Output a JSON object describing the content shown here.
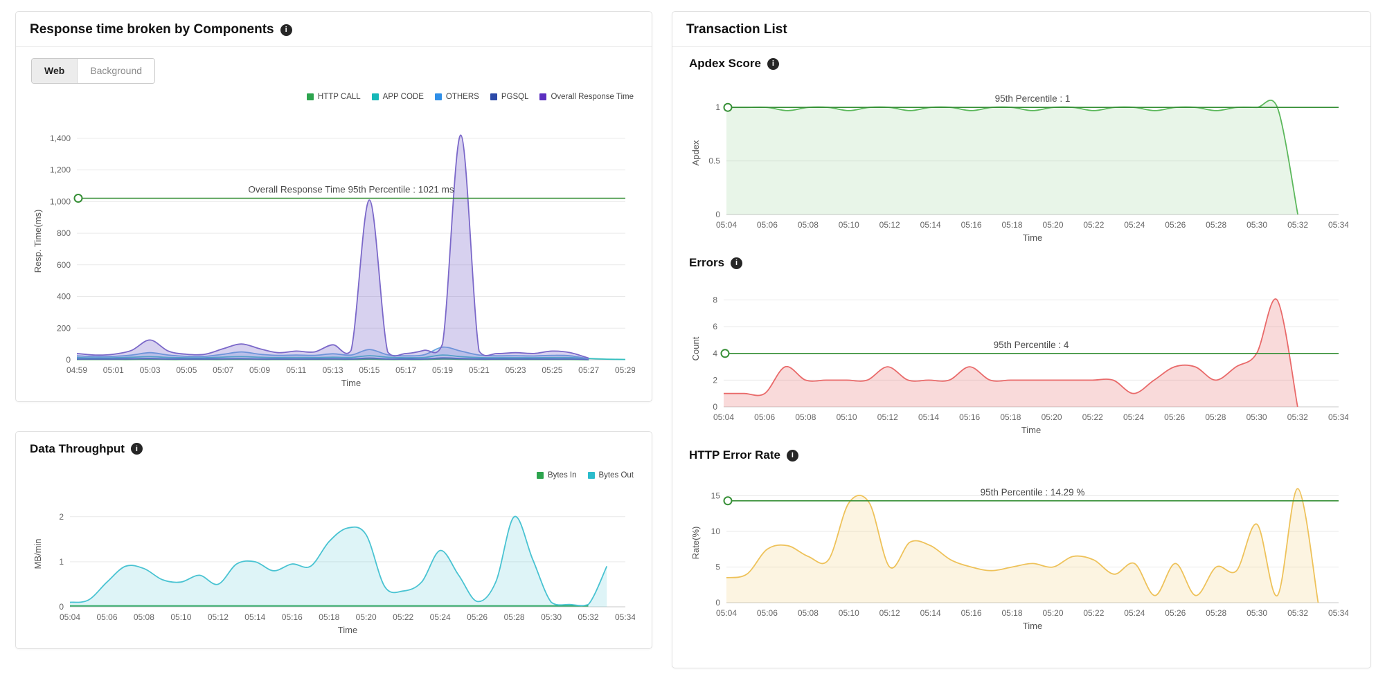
{
  "left": {
    "response_card": {
      "title": "Response time broken by Components",
      "tabs": [
        {
          "label": "Web",
          "active": true
        },
        {
          "label": "Background",
          "active": false
        }
      ],
      "legend": [
        {
          "label": "HTTP CALL",
          "color": "#2da44e"
        },
        {
          "label": "APP CODE",
          "color": "#17b8b8"
        },
        {
          "label": "OTHERS",
          "color": "#2f8fe8"
        },
        {
          "label": "PGSQL",
          "color": "#2c4aa8"
        },
        {
          "label": "Overall Response Time",
          "color": "#5b2fc0"
        }
      ]
    },
    "throughput_card": {
      "title": "Data Throughput",
      "legend": [
        {
          "label": "Bytes In",
          "color": "#2da44e"
        },
        {
          "label": "Bytes Out",
          "color": "#2bbccc"
        }
      ]
    }
  },
  "right": {
    "title": "Transaction List",
    "sections": [
      {
        "title": "Apdex Score"
      },
      {
        "title": "Errors"
      },
      {
        "title": "HTTP Error Rate"
      }
    ]
  },
  "chart_data": [
    {
      "id": "response_components",
      "type": "area",
      "title": "Response time broken by Components (Web)",
      "xlabel": "Time",
      "ylabel": "Resp. Time(ms)",
      "ml": 66,
      "x_count": 31,
      "x_ticks": [
        "04:59",
        "05:01",
        "05:03",
        "05:05",
        "05:07",
        "05:09",
        "05:11",
        "05:13",
        "05:15",
        "05:17",
        "05:19",
        "05:21",
        "05:23",
        "05:25",
        "05:27",
        "05:29"
      ],
      "ylim": [
        0,
        1500
      ],
      "y_ticks": [
        0,
        200,
        400,
        600,
        800,
        1000,
        1200,
        1400
      ],
      "y_tick_labels": [
        "0",
        "200",
        "400",
        "600",
        "800",
        "1,000",
        "1,200",
        "1,400"
      ],
      "threshold": {
        "value": 1021,
        "label": "Overall Response Time 95th Percentile : 1021 ms",
        "color": "#368f36"
      },
      "series": [
        {
          "name": "HTTP CALL",
          "color": "#2da44e",
          "values": [
            2,
            2,
            2,
            2,
            3,
            2,
            2,
            2,
            2,
            3,
            2,
            2,
            2,
            2,
            2,
            2,
            4,
            2,
            2,
            2,
            5,
            3,
            2,
            2,
            2,
            2,
            2,
            2,
            1,
            null,
            null
          ]
        },
        {
          "name": "APP CODE",
          "color": "#35c0c0",
          "values": [
            14,
            12,
            13,
            16,
            20,
            15,
            13,
            13,
            17,
            20,
            16,
            14,
            15,
            14,
            16,
            15,
            26,
            16,
            13,
            15,
            30,
            20,
            14,
            13,
            13,
            13,
            14,
            14,
            8,
            4,
            2
          ]
        },
        {
          "name": "PGSQL",
          "color": "#3a57b5",
          "values": [
            5,
            5,
            5,
            6,
            8,
            5,
            5,
            5,
            6,
            7,
            5,
            5,
            5,
            5,
            6,
            5,
            11,
            5,
            5,
            5,
            12,
            8,
            5,
            5,
            5,
            5,
            5,
            5,
            2,
            null,
            null
          ]
        },
        {
          "name": "OTHERS",
          "color": "#6aa7e0",
          "fill": "rgba(106,167,224,0.28)",
          "values": [
            25,
            20,
            22,
            30,
            45,
            30,
            22,
            22,
            35,
            50,
            35,
            28,
            30,
            28,
            38,
            30,
            65,
            32,
            25,
            32,
            80,
            55,
            30,
            25,
            26,
            24,
            28,
            25,
            6,
            null,
            null
          ]
        },
        {
          "name": "Overall Response Time",
          "color": "#7b68c9",
          "fill": "rgba(123,104,201,0.30)",
          "values": [
            40,
            30,
            35,
            60,
            125,
            55,
            35,
            35,
            70,
            100,
            70,
            45,
            55,
            50,
            95,
            60,
            1010,
            50,
            40,
            60,
            100,
            1420,
            55,
            40,
            45,
            40,
            55,
            45,
            10,
            null,
            null
          ]
        }
      ]
    },
    {
      "id": "data_throughput",
      "type": "area",
      "title": "Data Throughput",
      "xlabel": "Time",
      "ylabel": "MB/min",
      "ml": 56,
      "x_count": 31,
      "x_ticks": [
        "05:04",
        "05:06",
        "05:08",
        "05:10",
        "05:12",
        "05:14",
        "05:16",
        "05:18",
        "05:20",
        "05:22",
        "05:24",
        "05:26",
        "05:28",
        "05:30",
        "05:32",
        "05:34"
      ],
      "ylim": [
        0,
        2.35
      ],
      "y_ticks": [
        0,
        1,
        2
      ],
      "y_tick_labels": [
        "0",
        "1",
        "2"
      ],
      "series": [
        {
          "name": "Bytes In",
          "color": "#2da44e",
          "values": [
            0.02,
            0.02,
            0.02,
            0.02,
            0.02,
            0.02,
            0.02,
            0.02,
            0.02,
            0.02,
            0.02,
            0.02,
            0.02,
            0.02,
            0.02,
            0.02,
            0.02,
            0.02,
            0.02,
            0.02,
            0.02,
            0.02,
            0.02,
            0.02,
            0.02,
            0.02,
            0.02,
            0.02,
            0.02,
            null,
            null
          ]
        },
        {
          "name": "Bytes Out",
          "color": "#49c3d2",
          "fill": "rgba(73,195,210,0.18)",
          "values": [
            0.1,
            0.15,
            0.55,
            0.9,
            0.85,
            0.6,
            0.55,
            0.7,
            0.5,
            0.95,
            1.0,
            0.8,
            0.95,
            0.9,
            1.45,
            1.75,
            1.6,
            0.45,
            0.35,
            0.55,
            1.25,
            0.7,
            0.12,
            0.55,
            2.0,
            1.05,
            0.1,
            0.05,
            0.05,
            0.9,
            null
          ]
        }
      ]
    },
    {
      "id": "apdex",
      "type": "area",
      "title": "Apdex Score",
      "xlabel": "Time",
      "ylabel": "Apdex",
      "ml": 54,
      "x_count": 31,
      "x_ticks": [
        "05:04",
        "05:06",
        "05:08",
        "05:10",
        "05:12",
        "05:14",
        "05:16",
        "05:18",
        "05:20",
        "05:22",
        "05:24",
        "05:26",
        "05:28",
        "05:30",
        "05:32",
        "05:34"
      ],
      "ylim": [
        0,
        1.15
      ],
      "y_ticks": [
        0,
        0.5,
        1
      ],
      "y_tick_labels": [
        "0",
        "0.5",
        "1"
      ],
      "threshold": {
        "value": 1,
        "label": "95th Percentile : 1",
        "color": "#368f36"
      },
      "series": [
        {
          "name": "Apdex",
          "color": "#5cb85c",
          "fill": "rgba(92,184,92,0.14)",
          "values": [
            1,
            1,
            1,
            0.97,
            1,
            1,
            0.97,
            1,
            1,
            0.97,
            1,
            1,
            0.97,
            1,
            1,
            0.97,
            1,
            1,
            0.97,
            1,
            1,
            0.97,
            1,
            1,
            0.97,
            1,
            1,
            1,
            0,
            null,
            null
          ]
        }
      ]
    },
    {
      "id": "errors",
      "type": "area",
      "title": "Errors",
      "xlabel": "Time",
      "ylabel": "Count",
      "ml": 50,
      "x_count": 31,
      "x_ticks": [
        "05:04",
        "05:06",
        "05:08",
        "05:10",
        "05:12",
        "05:14",
        "05:16",
        "05:18",
        "05:20",
        "05:22",
        "05:24",
        "05:26",
        "05:28",
        "05:30",
        "05:32",
        "05:34"
      ],
      "ylim": [
        0,
        8.7
      ],
      "y_ticks": [
        0,
        2,
        4,
        6,
        8
      ],
      "y_tick_labels": [
        "0",
        "2",
        "4",
        "6",
        "8"
      ],
      "threshold": {
        "value": 4,
        "label": "95th Percentile : 4",
        "color": "#368f36"
      },
      "series": [
        {
          "name": "Errors",
          "color": "#e96a6a",
          "fill": "rgba(233,106,106,0.25)",
          "values": [
            1,
            1,
            1,
            3,
            2,
            2,
            2,
            2,
            3,
            2,
            2,
            2,
            3,
            2,
            2,
            2,
            2,
            2,
            2,
            2,
            1,
            2,
            3,
            3,
            2,
            3,
            4,
            8,
            0,
            null,
            null
          ]
        }
      ]
    },
    {
      "id": "http_error_rate",
      "type": "area",
      "title": "HTTP Error Rate",
      "xlabel": "Time",
      "ylabel": "Rate(%)",
      "ml": 54,
      "x_count": 31,
      "x_ticks": [
        "05:04",
        "05:06",
        "05:08",
        "05:10",
        "05:12",
        "05:14",
        "05:16",
        "05:18",
        "05:20",
        "05:22",
        "05:24",
        "05:26",
        "05:28",
        "05:30",
        "05:32",
        "05:34"
      ],
      "ylim": [
        0,
        16.8
      ],
      "y_ticks": [
        0,
        5,
        10,
        15
      ],
      "y_tick_labels": [
        "0",
        "5",
        "10",
        "15"
      ],
      "threshold": {
        "value": 14.29,
        "label": "95th Percentile : 14.29 %",
        "color": "#368f36"
      },
      "series": [
        {
          "name": "HTTP Error Rate",
          "color": "#eec25a",
          "fill": "rgba(238,194,90,0.18)",
          "values": [
            3.5,
            4,
            7.5,
            8,
            6.5,
            6,
            14,
            14,
            5,
            8.5,
            8,
            6,
            5,
            4.5,
            5,
            5.5,
            5,
            6.5,
            6,
            4,
            5.5,
            1,
            5.5,
            1,
            5,
            4.5,
            11,
            1,
            16,
            0,
            null
          ]
        }
      ]
    }
  ]
}
